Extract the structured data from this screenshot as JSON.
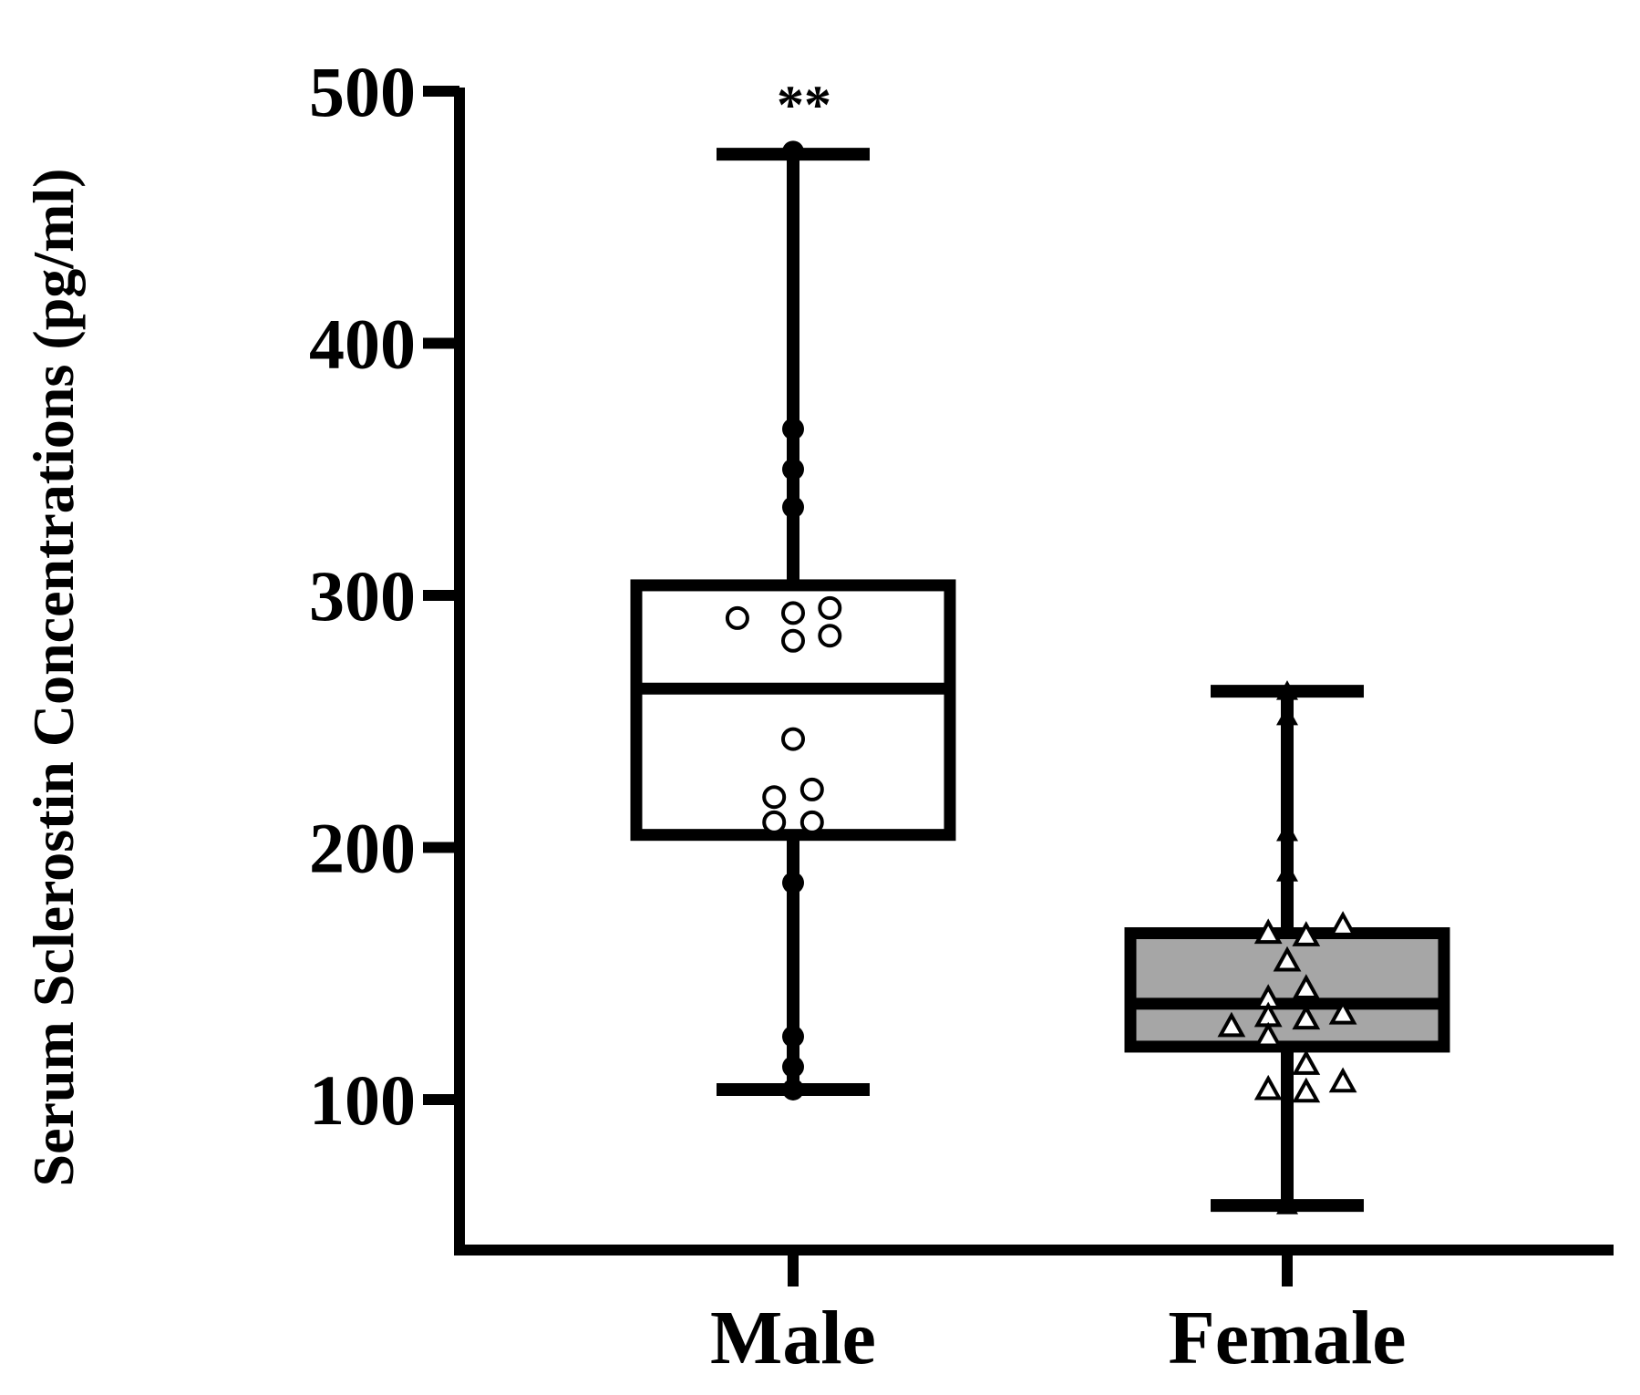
{
  "chart_data": {
    "type": "box",
    "ylabel": "Serum Sclerostin Concentrations (pg/ml)",
    "xlabel": "",
    "ylim": [
      40,
      500
    ],
    "yticks": [
      100,
      200,
      300,
      400,
      500
    ],
    "categories": [
      "Male",
      "Female"
    ],
    "grid": false,
    "legend": "none",
    "groups": [
      {
        "name": "Male",
        "whisker_min": 104,
        "q1": 205,
        "median": 263,
        "q3": 304,
        "whisker_max": 475,
        "box_fill": "#ffffff",
        "marker": "circle",
        "annotation": "**",
        "points": [
          {
            "dx": 0,
            "y": 476,
            "filled": true
          },
          {
            "dx": 0,
            "y": 366,
            "filled": true
          },
          {
            "dx": 0,
            "y": 350,
            "filled": true
          },
          {
            "dx": 0,
            "y": 335,
            "filled": true
          },
          {
            "dx": -0.47,
            "y": 291,
            "filled": false
          },
          {
            "dx": 0,
            "y": 293,
            "filled": false
          },
          {
            "dx": 0.31,
            "y": 295,
            "filled": false
          },
          {
            "dx": 0,
            "y": 282,
            "filled": false
          },
          {
            "dx": 0.31,
            "y": 284,
            "filled": false
          },
          {
            "dx": 0,
            "y": 243,
            "filled": false
          },
          {
            "dx": -0.16,
            "y": 220,
            "filled": false
          },
          {
            "dx": 0.16,
            "y": 223,
            "filled": false
          },
          {
            "dx": -0.16,
            "y": 210,
            "filled": false
          },
          {
            "dx": 0.16,
            "y": 210,
            "filled": false
          },
          {
            "dx": 0,
            "y": 186,
            "filled": true
          },
          {
            "dx": 0,
            "y": 125,
            "filled": true
          },
          {
            "dx": 0,
            "y": 113,
            "filled": true
          },
          {
            "dx": 0,
            "y": 104,
            "filled": true
          }
        ]
      },
      {
        "name": "Female",
        "whisker_min": 58,
        "q1": 121,
        "median": 138,
        "q3": 166,
        "whisker_max": 262,
        "box_fill": "#a6a6a6",
        "marker": "triangle",
        "annotation": "",
        "points": [
          {
            "dx": 0,
            "y": 262,
            "filled": true
          },
          {
            "dx": 0,
            "y": 252,
            "filled": true
          },
          {
            "dx": 0,
            "y": 206,
            "filled": true
          },
          {
            "dx": 0,
            "y": 190,
            "filled": true
          },
          {
            "dx": -0.16,
            "y": 166,
            "filled": false
          },
          {
            "dx": 0.16,
            "y": 165,
            "filled": false
          },
          {
            "dx": 0.47,
            "y": 169,
            "filled": false
          },
          {
            "dx": 0,
            "y": 155,
            "filled": false
          },
          {
            "dx": -0.16,
            "y": 140,
            "filled": false
          },
          {
            "dx": 0.16,
            "y": 144,
            "filled": false
          },
          {
            "dx": -0.16,
            "y": 133,
            "filled": false
          },
          {
            "dx": 0.16,
            "y": 132,
            "filled": false
          },
          {
            "dx": 0.47,
            "y": 134,
            "filled": false
          },
          {
            "dx": -0.47,
            "y": 129,
            "filled": false
          },
          {
            "dx": -0.16,
            "y": 125,
            "filled": false
          },
          {
            "dx": 0.16,
            "y": 114,
            "filled": false
          },
          {
            "dx": -0.16,
            "y": 104,
            "filled": false
          },
          {
            "dx": 0.16,
            "y": 103,
            "filled": false
          },
          {
            "dx": 0.47,
            "y": 107,
            "filled": false
          },
          {
            "dx": 0,
            "y": 58,
            "filled": true
          }
        ]
      }
    ]
  }
}
